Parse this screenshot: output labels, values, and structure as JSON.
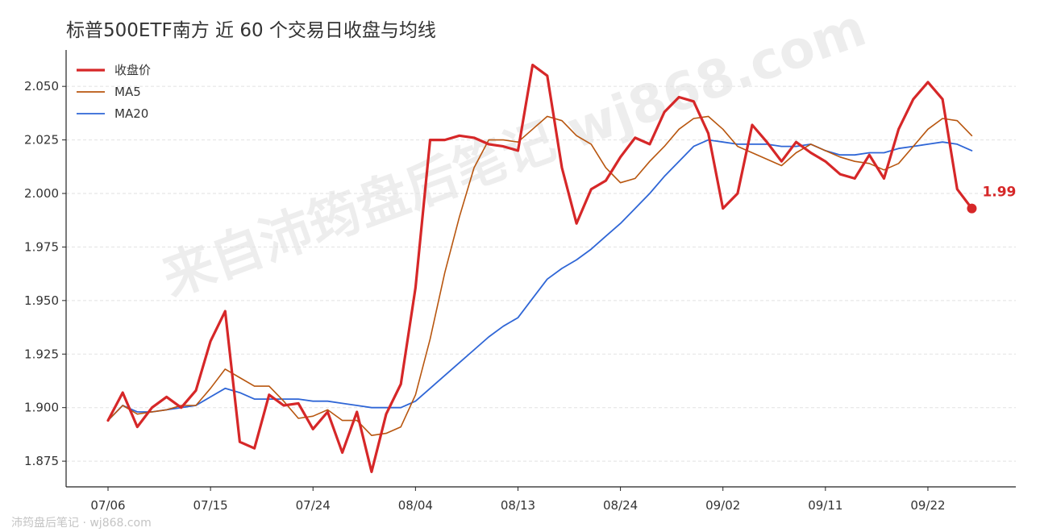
{
  "title": "标普500ETF南方 近 60 个交易日收盘与均线",
  "watermark": "来自沛筠盘后笔记 wj868.com",
  "footer": "沛筠盘后笔记 · wj868.com",
  "colors": {
    "close": "#d62728",
    "ma5": "#b8560f",
    "ma20": "#2f66d6",
    "grid": "#e2e2e2",
    "axis": "#222222"
  },
  "chart_data": {
    "type": "line",
    "title": "标普500ETF南方 近 60 个交易日收盘与均线",
    "xlabel": "",
    "ylabel": "",
    "ylim": [
      1.863,
      2.067
    ],
    "yticks": [
      1.875,
      1.9,
      1.925,
      1.95,
      1.975,
      2.0,
      2.025,
      2.05
    ],
    "ytick_labels": [
      "1.875",
      "1.900",
      "1.925",
      "1.950",
      "1.975",
      "2.000",
      "2.025",
      "2.050"
    ],
    "xticks": [
      {
        "label": "07/06",
        "index": 0
      },
      {
        "label": "07/15",
        "index": 7
      },
      {
        "label": "07/24",
        "index": 14
      },
      {
        "label": "08/04",
        "index": 21
      },
      {
        "label": "08/13",
        "index": 28
      },
      {
        "label": "08/24",
        "index": 35
      },
      {
        "label": "09/02",
        "index": 42
      },
      {
        "label": "09/11",
        "index": 49
      },
      {
        "label": "09/22",
        "index": 56
      }
    ],
    "grid": "horizontal dashed",
    "legend": "top-left",
    "last_value_label": "1.99",
    "series": [
      {
        "name": "收盘价",
        "values": [
          1.894,
          1.907,
          1.891,
          1.9,
          1.905,
          1.9,
          1.908,
          1.931,
          1.945,
          1.884,
          1.881,
          1.906,
          1.901,
          1.902,
          1.89,
          1.898,
          1.879,
          1.898,
          1.87,
          1.897,
          1.911,
          1.956,
          2.025,
          2.025,
          2.027,
          2.026,
          2.023,
          2.022,
          2.02,
          2.06,
          2.055,
          2.012,
          1.986,
          2.002,
          2.006,
          2.017,
          2.026,
          2.023,
          2.038,
          2.045,
          2.043,
          2.028,
          1.993,
          2.0,
          2.032,
          2.024,
          2.015,
          2.024,
          2.019,
          2.015,
          2.009,
          2.007,
          2.018,
          2.007,
          2.03,
          2.044,
          2.052,
          2.044,
          2.002,
          1.993
        ]
      },
      {
        "name": "MA5",
        "values": [
          1.894,
          1.901,
          1.897,
          1.898,
          1.899,
          1.901,
          1.901,
          1.909,
          1.918,
          1.914,
          1.91,
          1.91,
          1.903,
          1.895,
          1.896,
          1.899,
          1.894,
          1.894,
          1.887,
          1.888,
          1.891,
          1.906,
          1.932,
          1.963,
          1.989,
          2.012,
          2.025,
          2.025,
          2.024,
          2.03,
          2.036,
          2.034,
          2.027,
          2.023,
          2.012,
          2.005,
          2.007,
          2.015,
          2.022,
          2.03,
          2.035,
          2.036,
          2.03,
          2.022,
          2.019,
          2.016,
          2.013,
          2.019,
          2.023,
          2.02,
          2.017,
          2.015,
          2.014,
          2.011,
          2.014,
          2.022,
          2.03,
          2.035,
          2.034,
          2.027
        ]
      },
      {
        "name": "MA20",
        "values": [
          1.894,
          1.901,
          1.898,
          1.898,
          1.899,
          1.9,
          1.901,
          1.905,
          1.909,
          1.907,
          1.904,
          1.904,
          1.904,
          1.904,
          1.903,
          1.903,
          1.902,
          1.901,
          1.9,
          1.9,
          1.9,
          1.903,
          1.909,
          1.915,
          1.921,
          1.927,
          1.933,
          1.938,
          1.942,
          1.951,
          1.96,
          1.965,
          1.969,
          1.974,
          1.98,
          1.986,
          1.993,
          2.0,
          2.008,
          2.015,
          2.022,
          2.025,
          2.024,
          2.023,
          2.023,
          2.023,
          2.022,
          2.022,
          2.023,
          2.02,
          2.018,
          2.018,
          2.019,
          2.019,
          2.021,
          2.022,
          2.023,
          2.024,
          2.023,
          2.02
        ]
      }
    ]
  }
}
